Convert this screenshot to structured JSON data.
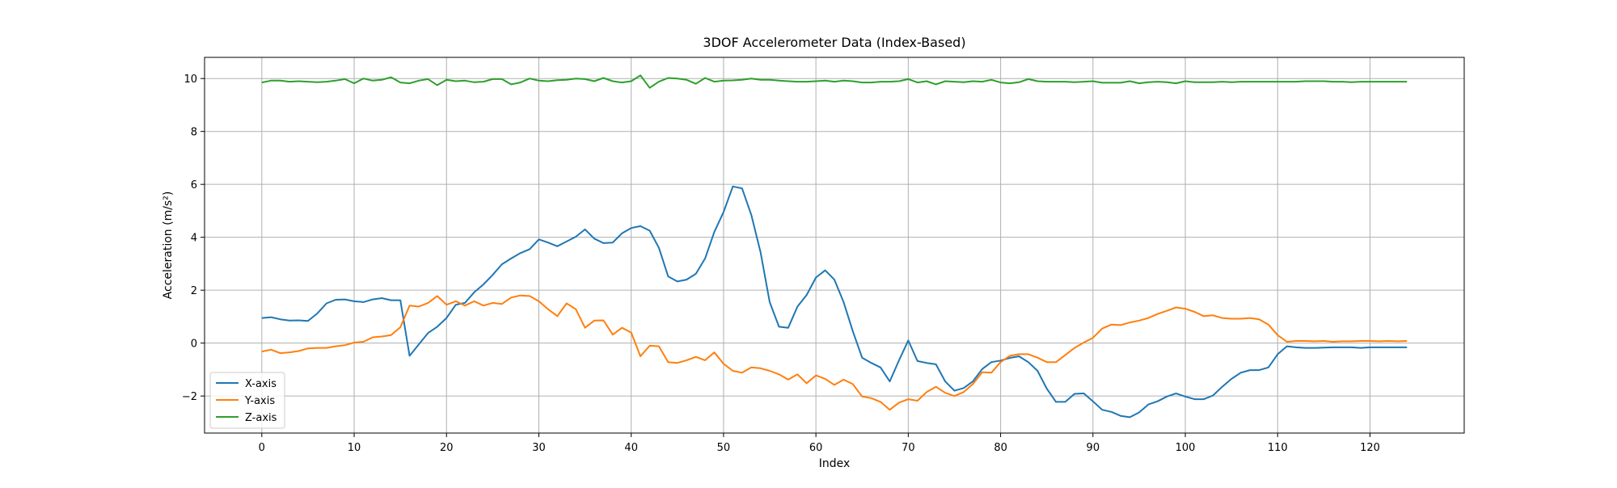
{
  "chart_data": {
    "type": "line",
    "title": "3DOF Accelerometer Data (Index-Based)",
    "xlabel": "Index",
    "ylabel": "Acceleration (m/s²)",
    "xlim": [
      -6.2,
      130.2
    ],
    "ylim": [
      -3.4,
      10.8
    ],
    "xticks": [
      0,
      10,
      20,
      30,
      40,
      50,
      60,
      70,
      80,
      90,
      100,
      110,
      120
    ],
    "yticks": [
      -2,
      0,
      2,
      4,
      6,
      8,
      10
    ],
    "grid": true,
    "legend_position": "lower-left",
    "x": [
      0,
      1,
      2,
      3,
      4,
      5,
      6,
      7,
      8,
      9,
      10,
      11,
      12,
      13,
      14,
      15,
      16,
      17,
      18,
      19,
      20,
      21,
      22,
      23,
      24,
      25,
      26,
      27,
      28,
      29,
      30,
      31,
      32,
      33,
      34,
      35,
      36,
      37,
      38,
      39,
      40,
      41,
      42,
      43,
      44,
      45,
      46,
      47,
      48,
      49,
      50,
      51,
      52,
      53,
      54,
      55,
      56,
      57,
      58,
      59,
      60,
      61,
      62,
      63,
      64,
      65,
      66,
      67,
      68,
      69,
      70,
      71,
      72,
      73,
      74,
      75,
      76,
      77,
      78,
      79,
      80,
      81,
      82,
      83,
      84,
      85,
      86,
      87,
      88,
      89,
      90,
      91,
      92,
      93,
      94,
      95,
      96,
      97,
      98,
      99,
      100,
      101,
      102,
      103,
      104,
      105,
      106,
      107,
      108,
      109,
      110,
      111,
      112,
      113,
      114,
      115,
      116,
      117,
      118,
      119,
      120,
      121,
      122,
      123,
      124
    ],
    "series": [
      {
        "name": "X-axis",
        "color": "#1f77b4",
        "values": [
          0.95,
          0.98,
          0.9,
          0.85,
          0.86,
          0.84,
          1.12,
          1.5,
          1.64,
          1.65,
          1.58,
          1.55,
          1.65,
          1.7,
          1.62,
          1.62,
          -0.48,
          -0.05,
          0.38,
          0.62,
          0.95,
          1.45,
          1.52,
          1.92,
          2.22,
          2.58,
          2.98,
          3.2,
          3.4,
          3.55,
          3.92,
          3.8,
          3.66,
          3.84,
          4.02,
          4.3,
          3.95,
          3.78,
          3.8,
          4.15,
          4.35,
          4.42,
          4.25,
          3.6,
          2.52,
          2.33,
          2.4,
          2.62,
          3.2,
          4.2,
          4.95,
          5.92,
          5.85,
          4.85,
          3.45,
          1.55,
          0.62,
          0.58,
          1.38,
          1.82,
          2.48,
          2.75,
          2.4,
          1.55,
          0.45,
          -0.55,
          -0.75,
          -0.92,
          -1.45,
          -0.65,
          0.1,
          -0.68,
          -0.75,
          -0.8,
          -1.45,
          -1.8,
          -1.7,
          -1.45,
          -0.98,
          -0.72,
          -0.66,
          -0.56,
          -0.5,
          -0.72,
          -1.05,
          -1.72,
          -2.22,
          -2.22,
          -1.92,
          -1.9,
          -2.2,
          -2.52,
          -2.6,
          -2.75,
          -2.8,
          -2.62,
          -2.32,
          -2.2,
          -2.02,
          -1.9,
          -2.02,
          -2.12,
          -2.12,
          -1.98,
          -1.65,
          -1.35,
          -1.12,
          -1.02,
          -1.02,
          -0.92,
          -0.42,
          -0.12,
          -0.16,
          -0.18,
          -0.18,
          -0.17,
          -0.16,
          -0.16,
          -0.16,
          -0.18,
          -0.16,
          -0.16,
          -0.16,
          -0.16,
          -0.16
        ]
      },
      {
        "name": "Y-axis",
        "color": "#ff7f0e",
        "values": [
          -0.32,
          -0.25,
          -0.38,
          -0.35,
          -0.3,
          -0.2,
          -0.18,
          -0.18,
          -0.12,
          -0.08,
          0.02,
          0.05,
          0.22,
          0.25,
          0.3,
          0.6,
          1.42,
          1.38,
          1.52,
          1.78,
          1.45,
          1.58,
          1.42,
          1.58,
          1.42,
          1.52,
          1.48,
          1.72,
          1.8,
          1.78,
          1.58,
          1.28,
          1.02,
          1.5,
          1.28,
          0.58,
          0.85,
          0.86,
          0.32,
          0.58,
          0.4,
          -0.5,
          -0.1,
          -0.12,
          -0.72,
          -0.75,
          -0.65,
          -0.52,
          -0.65,
          -0.35,
          -0.78,
          -1.05,
          -1.12,
          -0.92,
          -0.95,
          -1.05,
          -1.18,
          -1.38,
          -1.18,
          -1.52,
          -1.22,
          -1.35,
          -1.58,
          -1.38,
          -1.55,
          -2.02,
          -2.08,
          -2.22,
          -2.52,
          -2.25,
          -2.12,
          -2.18,
          -1.85,
          -1.65,
          -1.88,
          -2.0,
          -1.85,
          -1.55,
          -1.1,
          -1.12,
          -0.72,
          -0.48,
          -0.42,
          -0.42,
          -0.55,
          -0.72,
          -0.72,
          -0.45,
          -0.18,
          0.02,
          0.2,
          0.55,
          0.7,
          0.68,
          0.78,
          0.85,
          0.95,
          1.1,
          1.22,
          1.35,
          1.3,
          1.18,
          1.02,
          1.05,
          0.95,
          0.92,
          0.92,
          0.95,
          0.9,
          0.7,
          0.3,
          0.05,
          0.08,
          0.08,
          0.07,
          0.08,
          0.05,
          0.07,
          0.07,
          0.08,
          0.08,
          0.07,
          0.08,
          0.07,
          0.08
        ]
      },
      {
        "name": "Z-axis",
        "color": "#2ca02c",
        "values": [
          9.85,
          9.92,
          9.92,
          9.88,
          9.9,
          9.88,
          9.86,
          9.88,
          9.92,
          9.98,
          9.82,
          10.0,
          9.92,
          9.95,
          10.05,
          9.85,
          9.82,
          9.92,
          9.98,
          9.75,
          9.95,
          9.9,
          9.92,
          9.86,
          9.88,
          9.98,
          9.98,
          9.78,
          9.85,
          10.0,
          9.92,
          9.9,
          9.94,
          9.95,
          10.0,
          9.98,
          9.9,
          10.02,
          9.9,
          9.85,
          9.9,
          10.12,
          9.65,
          9.88,
          10.02,
          10.0,
          9.95,
          9.8,
          10.02,
          9.88,
          9.92,
          9.93,
          9.95,
          10.0,
          9.95,
          9.95,
          9.92,
          9.9,
          9.88,
          9.88,
          9.9,
          9.92,
          9.88,
          9.92,
          9.9,
          9.85,
          9.85,
          9.88,
          9.88,
          9.9,
          9.98,
          9.85,
          9.9,
          9.78,
          9.9,
          9.88,
          9.86,
          9.9,
          9.88,
          9.95,
          9.85,
          9.82,
          9.86,
          9.98,
          9.9,
          9.88,
          9.88,
          9.88,
          9.86,
          9.88,
          9.9,
          9.84,
          9.84,
          9.84,
          9.9,
          9.82,
          9.86,
          9.88,
          9.86,
          9.82,
          9.9,
          9.86,
          9.86,
          9.86,
          9.88,
          9.86,
          9.88,
          9.88,
          9.88,
          9.88,
          9.88,
          9.88,
          9.88,
          9.9,
          9.9,
          9.9,
          9.88,
          9.88,
          9.86,
          9.88,
          9.88,
          9.88,
          9.88,
          9.88,
          9.88
        ]
      }
    ]
  }
}
